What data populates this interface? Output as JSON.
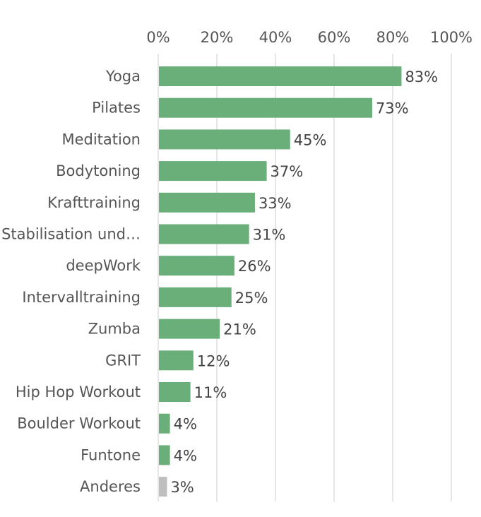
{
  "chart_data": {
    "type": "bar",
    "orientation": "horizontal",
    "title": "",
    "xlabel": "",
    "ylabel": "",
    "xlim": [
      0,
      100
    ],
    "x_axis_position": "top",
    "grid": true,
    "legend": "none",
    "tick_labels": [
      "0%",
      "20%",
      "40%",
      "60%",
      "80%",
      "100%"
    ],
    "categories": [
      "Yoga",
      "Pilates",
      "Meditation",
      "Bodytoning",
      "Krafttraining",
      "Stabilisation und…",
      "deepWork",
      "Intervalltraining",
      "Zumba",
      "GRIT",
      "Hip Hop Workout",
      "Boulder Workout",
      "Funtone",
      "Anderes"
    ],
    "values": [
      83,
      73,
      45,
      37,
      33,
      31,
      26,
      25,
      21,
      12,
      11,
      4,
      4,
      3
    ],
    "value_labels": [
      "83%",
      "73%",
      "45%",
      "37%",
      "33%",
      "31%",
      "26%",
      "25%",
      "21%",
      "12%",
      "11%",
      "4%",
      "4%",
      "3%"
    ],
    "colors": {
      "bar": "#6aaf7a",
      "highlight": [
        "#bfbfbf"
      ],
      "highlight_categories": [
        "Anderes"
      ]
    }
  }
}
